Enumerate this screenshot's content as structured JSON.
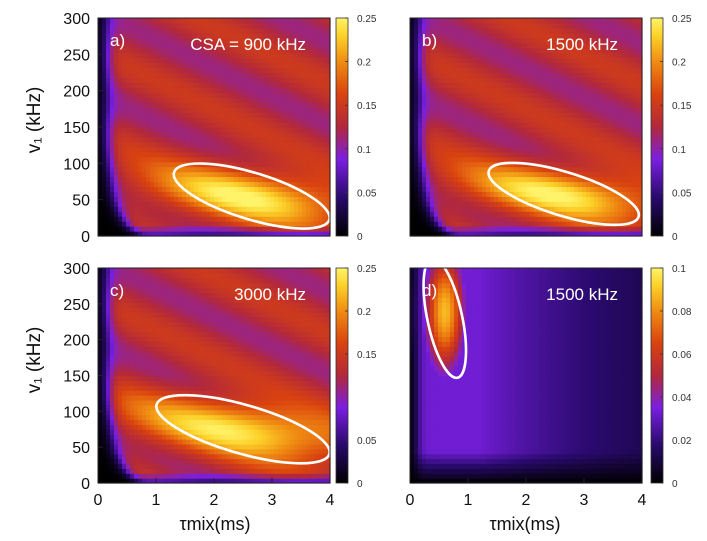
{
  "figure": {
    "ylabel": "v₁ (kHz)",
    "xlabel": "τmix(ms)"
  },
  "chart_data": [
    {
      "type": "heatmap",
      "panel_label": "a)",
      "annotation": "CSA = 900 kHz",
      "x_ticks": [],
      "y_ticks": [
        "0",
        "50",
        "100",
        "150",
        "200",
        "250",
        "300"
      ],
      "xlim": [
        0,
        4
      ],
      "ylim": [
        0,
        300
      ],
      "colorbar_ticks": [
        "0",
        "0.05",
        "0.1",
        "0.15",
        "0.2",
        "0.25"
      ],
      "color_range": [
        0,
        0.25
      ],
      "max_intensity_ms_kHz": [
        2.3,
        45
      ],
      "highlight_ellipse": {
        "center_ms": 2.65,
        "center_kHz": 55,
        "semi_x_ms": 1.4,
        "semi_y_kHz": 32,
        "tilt_deg": 17
      }
    },
    {
      "type": "heatmap",
      "panel_label": "b)",
      "annotation": "1500 kHz",
      "x_ticks": [],
      "y_ticks": [],
      "xlim": [
        0,
        4
      ],
      "ylim": [
        0,
        300
      ],
      "colorbar_ticks": [
        "0",
        "0.05",
        "0.1",
        "0.15",
        "0.2",
        "0.25"
      ],
      "color_range": [
        0,
        0.25
      ],
      "max_intensity_ms_kHz": [
        2.4,
        45
      ],
      "highlight_ellipse": {
        "center_ms": 2.65,
        "center_kHz": 58,
        "semi_x_ms": 1.35,
        "semi_y_kHz": 30,
        "tilt_deg": 17
      }
    },
    {
      "type": "heatmap",
      "panel_label": "c)",
      "annotation": "3000 kHz",
      "x_ticks": [
        "0",
        "1",
        "2",
        "3",
        "4"
      ],
      "y_ticks": [
        "0",
        "50",
        "100",
        "150",
        "200",
        "250",
        "300"
      ],
      "xlim": [
        0,
        4
      ],
      "ylim": [
        0,
        300
      ],
      "colorbar_ticks": [
        "0",
        "0.05",
        "0.15",
        "0.2",
        "0.25"
      ],
      "color_range": [
        0,
        0.25
      ],
      "max_intensity_ms_kHz": [
        2.3,
        90
      ],
      "highlight_ellipse": {
        "center_ms": 2.5,
        "center_kHz": 75,
        "semi_x_ms": 1.55,
        "semi_y_kHz": 34,
        "tilt_deg": 16
      }
    },
    {
      "type": "heatmap",
      "panel_label": "d)",
      "annotation": "1500 kHz",
      "x_ticks": [
        "0",
        "1",
        "2",
        "3",
        "4"
      ],
      "y_ticks": [],
      "xlim": [
        0,
        4
      ],
      "ylim": [
        0,
        300
      ],
      "colorbar_ticks": [
        "0",
        "0.02",
        "0.04",
        "0.06",
        "0.08",
        "0.1"
      ],
      "color_range": [
        0,
        0.1
      ],
      "max_intensity_ms_kHz": [
        0.6,
        250
      ],
      "highlight_ellipse": {
        "center_ms": 0.6,
        "center_kHz": 230,
        "semi_x_ms": 0.3,
        "semi_y_kHz": 85,
        "tilt_deg": -12
      }
    }
  ]
}
